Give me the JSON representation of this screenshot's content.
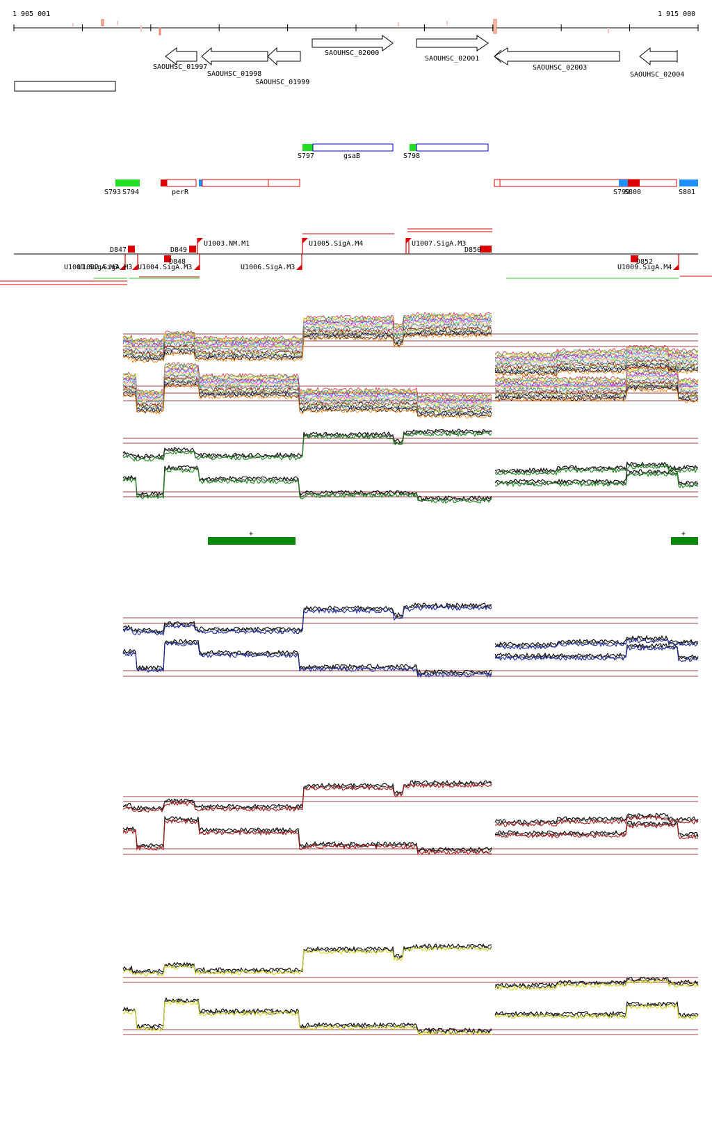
{
  "ruler": {
    "start_label": "1 905 001",
    "end_label": "1 915 000"
  },
  "genes": [
    {
      "id": "g01997",
      "label": "SAOUHSC_01997",
      "strand": "-"
    },
    {
      "id": "g01998",
      "label": "SAOUHSC_01998",
      "strand": "-"
    },
    {
      "id": "g01999",
      "label": "SAOUHSC_01999",
      "strand": "-"
    },
    {
      "id": "g02000",
      "label": "SAOUHSC_02000",
      "strand": "+"
    },
    {
      "id": "g02001",
      "label": "SAOUHSC_02001",
      "strand": "+"
    },
    {
      "id": "g02003",
      "label": "SAOUHSC_02003",
      "strand": "-"
    },
    {
      "id": "g02004",
      "label": "SAOUHSC_02004",
      "strand": "-"
    }
  ],
  "features": {
    "s797": "S797",
    "gsaB": "gsaB",
    "s798": "S798",
    "s793": "S793",
    "s794": "S794",
    "perR": "perR",
    "s799": "S799",
    "s800": "S800",
    "s801": "S801"
  },
  "promoters": {
    "d847": "D847",
    "d849": "D849",
    "d848": "D848",
    "d850": "D850",
    "d852": "D852",
    "u1003": "U1003.NM.M1",
    "u1005": "U1005.SigA.M4",
    "u1007": "U1007.SigA.M3",
    "u1001": "U1001.SigA.M3",
    "u1002": "U1002.SigA.M3",
    "u1004": "U1004.SigA.M3",
    "u1006": "U1006.SigA.M3",
    "u1009": "U1009.SigA.M4"
  },
  "domains": {
    "left_sign": "+",
    "right_sign": "+"
  },
  "colors": {
    "gene_outline": "#000000",
    "feature_blue": "#0000cc",
    "feature_red": "#dd0000",
    "feature_green": "#00cc00",
    "feature_cyan": "#1e90ff",
    "panel_green": "#1a8a1a",
    "panel_blue": "#1a2aa8",
    "panel_red": "#b01818",
    "panel_yellow": "#d8d820",
    "threshold": "#a04040",
    "domain_green": "#0a8a0a"
  }
}
